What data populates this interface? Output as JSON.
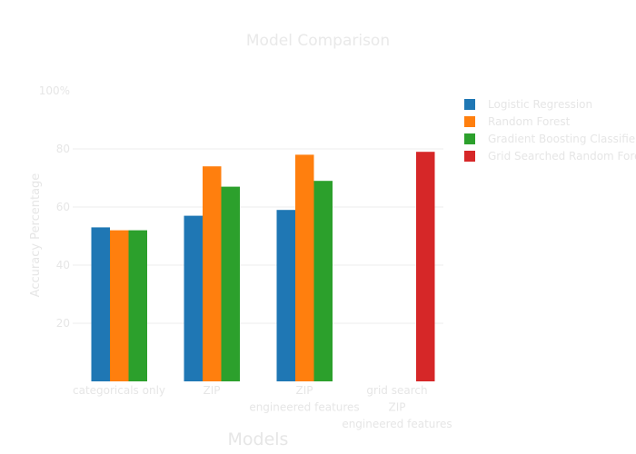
{
  "chart_data": {
    "type": "bar",
    "title": "Model Comparison",
    "xlabel": "Models",
    "ylabel": "Accuracy Percentage",
    "ylim": [
      0,
      100
    ],
    "yticks": [
      "20",
      "40",
      "60",
      "80",
      "100%"
    ],
    "categories": [
      [
        "categoricals only"
      ],
      [
        "ZIP"
      ],
      [
        "ZIP",
        "engineered features"
      ],
      [
        "grid search",
        "ZIP",
        "engineered features"
      ]
    ],
    "series": [
      {
        "name": "Logistic Regression",
        "color": "#1f77b4",
        "values": [
          53,
          57,
          59,
          null
        ]
      },
      {
        "name": "Random Forest",
        "color": "#ff7f0e",
        "values": [
          52,
          74,
          78,
          null
        ]
      },
      {
        "name": "Gradient Boosting Classifier",
        "color": "#2ca02c",
        "values": [
          52,
          67,
          69,
          null
        ]
      },
      {
        "name": "Grid Searched Random Forest",
        "color": "#d62728",
        "values": [
          null,
          null,
          null,
          79
        ]
      }
    ],
    "grid": true,
    "legend_position": "right"
  }
}
